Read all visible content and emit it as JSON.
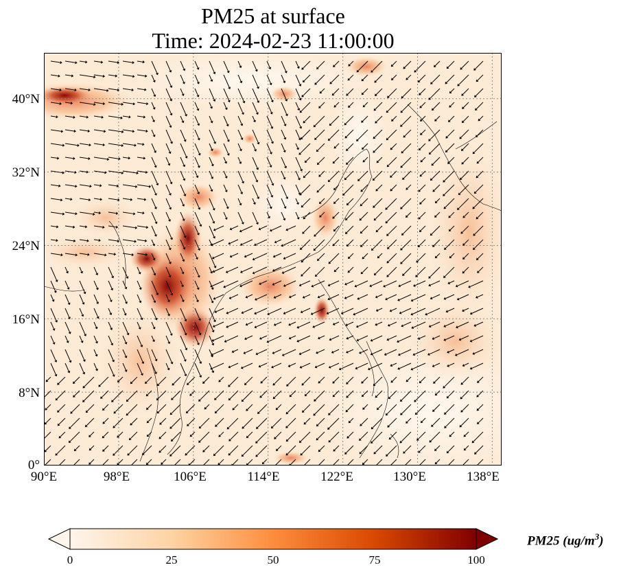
{
  "title": {
    "line1": "PM25 at surface",
    "line2": "Time: 2024-02-23 11:00:00"
  },
  "map": {
    "variable": "PM25",
    "lon_range": [
      90,
      139
    ],
    "lat_range": [
      0,
      45
    ],
    "lat_ticks": [
      "40°N",
      "32°N",
      "24°N",
      "16°N",
      "8°N",
      "0°"
    ],
    "lon_ticks": [
      "90°E",
      "98°E",
      "106°E",
      "114°E",
      "122°E",
      "130°E",
      "138°E"
    ],
    "gridlines": "dotted",
    "background_color": "#fdebd6",
    "arrow_color": "#000000"
  },
  "colorbar": {
    "label": "PM25 (ug/m",
    "label_sup": "3",
    "label_close": ")",
    "ticks": [
      "0",
      "25",
      "50",
      "75",
      "100"
    ],
    "range": [
      0,
      100
    ],
    "colormap": [
      "#fff5eb",
      "#fdd3a4",
      "#fd8d3c",
      "#d94801",
      "#7f0000"
    ],
    "extend": "both"
  }
}
